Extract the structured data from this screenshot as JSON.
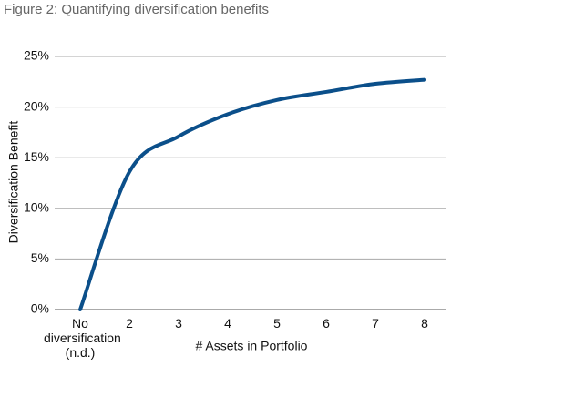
{
  "chart_data": {
    "type": "line",
    "title": "Figure 2: Quantifying diversification benefits",
    "ylabel": "Diversification Benefit",
    "xlabel": "# Assets in Portfolio",
    "categories": [
      "No diversification (n.d.)",
      "2",
      "3",
      "4",
      "5",
      "6",
      "7",
      "8"
    ],
    "series": [
      {
        "name": "Diversification Benefit",
        "color": "#0b4f8a",
        "values": [
          0,
          13.6,
          17.1,
          19.3,
          20.7,
          21.5,
          22.3,
          22.7
        ]
      }
    ],
    "ylim": [
      0,
      25
    ],
    "yticks": [
      {
        "value": 0,
        "label": "0%"
      },
      {
        "value": 5,
        "label": "5%"
      },
      {
        "value": 10,
        "label": "10%"
      },
      {
        "value": 15,
        "label": "15%"
      },
      {
        "value": 20,
        "label": "20%"
      },
      {
        "value": 25,
        "label": "25%"
      }
    ],
    "grid": true
  }
}
